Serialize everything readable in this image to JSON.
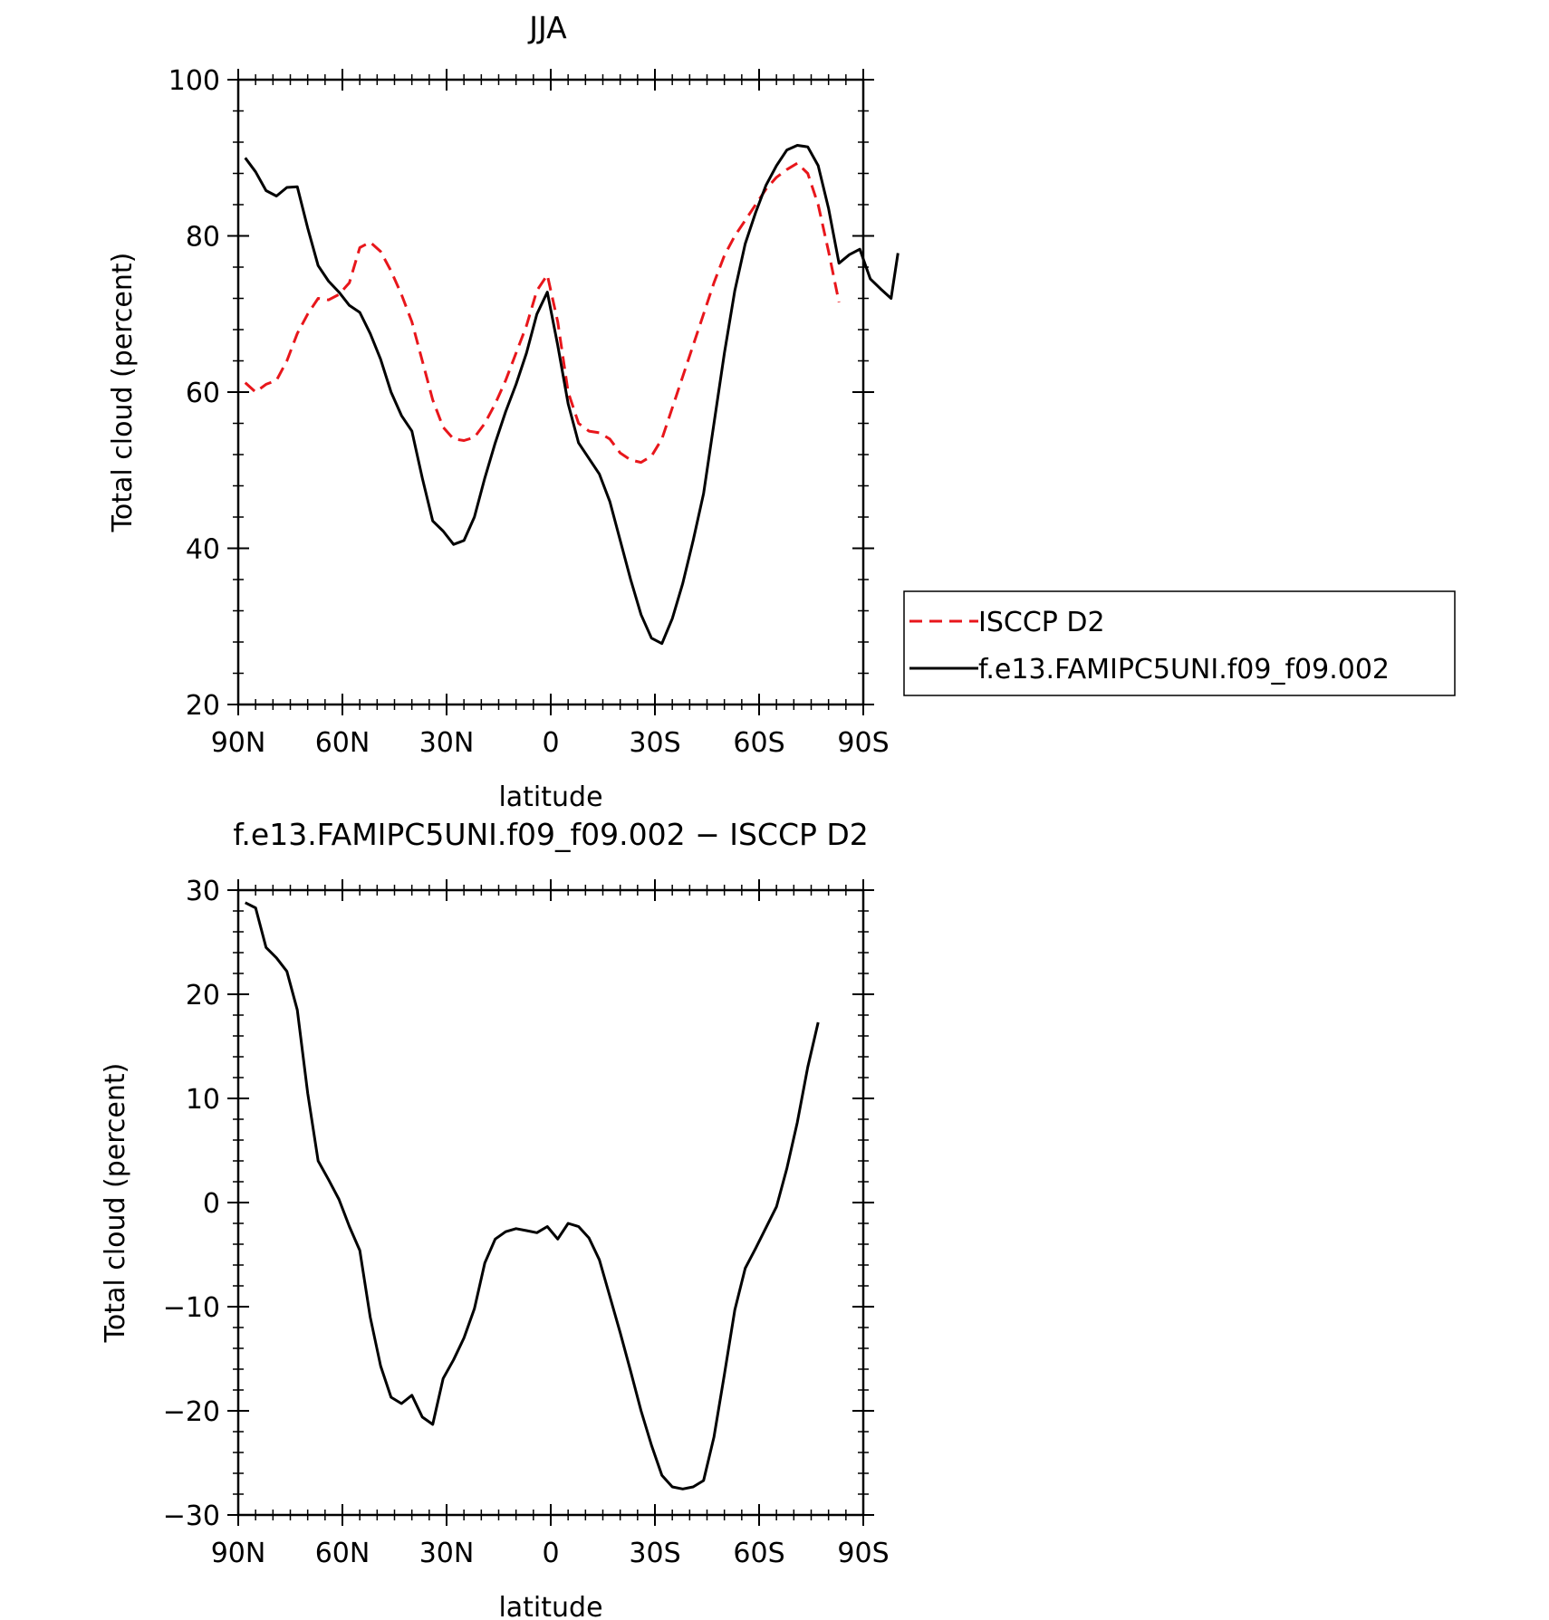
{
  "chart_data": [
    {
      "type": "line",
      "title": "JJA",
      "xlabel": "latitude",
      "ylabel": "Total cloud (percent)",
      "xlim": [
        90,
        -90
      ],
      "ylim": [
        20,
        100
      ],
      "x_ticks": [
        {
          "value": 90,
          "label": "90N"
        },
        {
          "value": 60,
          "label": "60N"
        },
        {
          "value": 30,
          "label": "30N"
        },
        {
          "value": 0,
          "label": "0"
        },
        {
          "value": -30,
          "label": "30S"
        },
        {
          "value": -60,
          "label": "60S"
        },
        {
          "value": -90,
          "label": "90S"
        }
      ],
      "y_ticks": [
        {
          "value": 20,
          "label": "20"
        },
        {
          "value": 40,
          "label": "40"
        },
        {
          "value": 60,
          "label": "60"
        },
        {
          "value": 80,
          "label": "80"
        },
        {
          "value": 100,
          "label": "100"
        }
      ],
      "legend": {
        "position": "right"
      },
      "series": [
        {
          "name": "ISCCP D2",
          "color": "#e8161b",
          "dash": true,
          "points": [
            [
              88,
              61.2
            ],
            [
              85,
              60
            ],
            [
              82,
              61
            ],
            [
              79,
              61.5
            ],
            [
              76,
              64
            ],
            [
              73,
              67.5
            ],
            [
              70,
              70
            ],
            [
              67,
              72
            ],
            [
              64,
              71.8
            ],
            [
              61,
              72.5
            ],
            [
              58,
              74
            ],
            [
              55,
              78.5
            ],
            [
              52,
              79.2
            ],
            [
              49,
              78
            ],
            [
              46,
              75.5
            ],
            [
              43,
              72.5
            ],
            [
              40,
              69
            ],
            [
              37,
              64
            ],
            [
              34,
              59
            ],
            [
              31,
              55.5
            ],
            [
              28,
              54
            ],
            [
              25,
              53.8
            ],
            [
              22,
              54.2
            ],
            [
              19,
              56
            ],
            [
              16,
              58.5
            ],
            [
              13,
              61.5
            ],
            [
              10,
              65
            ],
            [
              7,
              68.5
            ],
            [
              4,
              73
            ],
            [
              1,
              75
            ],
            [
              -2,
              69
            ],
            [
              -5,
              60
            ],
            [
              -8,
              56
            ],
            [
              -11,
              55
            ],
            [
              -14,
              54.8
            ],
            [
              -17,
              54
            ],
            [
              -20,
              52.2
            ],
            [
              -23,
              51.3
            ],
            [
              -26,
              51
            ],
            [
              -29,
              51.8
            ],
            [
              -32,
              54
            ],
            [
              -35,
              58
            ],
            [
              -38,
              62
            ],
            [
              -41,
              66
            ],
            [
              -44,
              70
            ],
            [
              -47,
              74
            ],
            [
              -50,
              77.5
            ],
            [
              -53,
              80
            ],
            [
              -56,
              82
            ],
            [
              -59,
              84
            ],
            [
              -62,
              86
            ],
            [
              -65,
              87.5
            ],
            [
              -68,
              88.5
            ],
            [
              -71,
              89.3
            ],
            [
              -74,
              88
            ],
            [
              -77,
              84
            ],
            [
              -80,
              78
            ],
            [
              -83,
              71.5
            ]
          ]
        },
        {
          "name": "f.e13.FAMIPC5UNI.f09_f09.002",
          "color": "#000000",
          "dash": false,
          "points": [
            [
              88,
              90
            ],
            [
              85,
              88.2
            ],
            [
              82,
              85.8
            ],
            [
              79,
              85.1
            ],
            [
              76,
              86.2
            ],
            [
              73,
              86.3
            ],
            [
              70,
              81
            ],
            [
              67,
              76.2
            ],
            [
              64,
              74.2
            ],
            [
              61,
              72.8
            ],
            [
              58,
              71.1
            ],
            [
              55,
              70.2
            ],
            [
              52,
              67.5
            ],
            [
              49,
              64.2
            ],
            [
              46,
              60
            ],
            [
              43,
              57
            ],
            [
              40,
              55
            ],
            [
              37,
              49
            ],
            [
              34,
              43.5
            ],
            [
              31,
              42.2
            ],
            [
              28,
              40.5
            ],
            [
              25,
              41
            ],
            [
              22,
              44
            ],
            [
              19,
              49
            ],
            [
              16,
              53.5
            ],
            [
              13,
              57.5
            ],
            [
              10,
              61
            ],
            [
              7,
              65
            ],
            [
              4,
              70
            ],
            [
              1,
              72.8
            ],
            [
              -2,
              66
            ],
            [
              -5,
              58.5
            ],
            [
              -8,
              53.5
            ],
            [
              -11,
              51.5
            ],
            [
              -14,
              49.5
            ],
            [
              -17,
              46
            ],
            [
              -20,
              41
            ],
            [
              -23,
              36
            ],
            [
              -26,
              31.5
            ],
            [
              -29,
              28.5
            ],
            [
              -32,
              27.8
            ],
            [
              -35,
              31
            ],
            [
              -38,
              35.5
            ],
            [
              -41,
              41
            ],
            [
              -44,
              47
            ],
            [
              -47,
              56
            ],
            [
              -50,
              65
            ],
            [
              -53,
              73
            ],
            [
              -56,
              79
            ],
            [
              -59,
              83
            ],
            [
              -62,
              86.5
            ],
            [
              -65,
              89
            ],
            [
              -68,
              91
            ],
            [
              -71,
              91.6
            ],
            [
              -74,
              91.4
            ],
            [
              -77,
              89
            ],
            [
              -80,
              83.5
            ],
            [
              -83,
              76.5
            ],
            [
              -86,
              77.6
            ],
            [
              -89,
              78.3
            ],
            [
              -92,
              74.5
            ],
            [
              -95,
              73.2
            ],
            [
              -98,
              72
            ],
            [
              -100,
              77.8
            ]
          ]
        }
      ]
    },
    {
      "type": "line",
      "title": "f.e13.FAMIPC5UNI.f09_f09.002 − ISCCP D2",
      "xlabel": "latitude",
      "ylabel": "Total cloud (percent)",
      "xlim": [
        90,
        -90
      ],
      "ylim": [
        -30,
        30
      ],
      "x_ticks": [
        {
          "value": 90,
          "label": "90N"
        },
        {
          "value": 60,
          "label": "60N"
        },
        {
          "value": 30,
          "label": "30N"
        },
        {
          "value": 0,
          "label": "0"
        },
        {
          "value": -30,
          "label": "30S"
        },
        {
          "value": -60,
          "label": "60S"
        },
        {
          "value": -90,
          "label": "90S"
        }
      ],
      "y_ticks": [
        {
          "value": -30,
          "label": "−30"
        },
        {
          "value": -20,
          "label": "−20"
        },
        {
          "value": -10,
          "label": "−10"
        },
        {
          "value": 0,
          "label": "0"
        },
        {
          "value": 10,
          "label": "10"
        },
        {
          "value": 20,
          "label": "20"
        },
        {
          "value": 30,
          "label": "30"
        }
      ],
      "series": [
        {
          "name": "",
          "color": "#000000",
          "dash": false,
          "points": [
            [
              88,
              28.8
            ],
            [
              85,
              28.3
            ],
            [
              82,
              24.5
            ],
            [
              79,
              23.5
            ],
            [
              76,
              22.2
            ],
            [
              73,
              18.5
            ],
            [
              70,
              10.5
            ],
            [
              67,
              4
            ],
            [
              64,
              2.2
            ],
            [
              61,
              0.3
            ],
            [
              58,
              -2.3
            ],
            [
              55,
              -4.6
            ],
            [
              52,
              -11
            ],
            [
              49,
              -15.7
            ],
            [
              46,
              -18.7
            ],
            [
              43,
              -19.3
            ],
            [
              40,
              -18.5
            ],
            [
              37,
              -20.6
            ],
            [
              34,
              -21.3
            ],
            [
              31,
              -16.9
            ],
            [
              28,
              -15.1
            ],
            [
              25,
              -13
            ],
            [
              22,
              -10.2
            ],
            [
              19,
              -5.8
            ],
            [
              16,
              -3.5
            ],
            [
              13,
              -2.8
            ],
            [
              10,
              -2.5
            ],
            [
              7,
              -2.7
            ],
            [
              4,
              -2.9
            ],
            [
              1,
              -2.3
            ],
            [
              -2,
              -3.5
            ],
            [
              -5,
              -2
            ],
            [
              -8,
              -2.3
            ],
            [
              -11,
              -3.4
            ],
            [
              -14,
              -5.5
            ],
            [
              -17,
              -9
            ],
            [
              -20,
              -12.5
            ],
            [
              -23,
              -16.2
            ],
            [
              -26,
              -20
            ],
            [
              -29,
              -23.3
            ],
            [
              -32,
              -26.2
            ],
            [
              -35,
              -27.3
            ],
            [
              -38,
              -27.5
            ],
            [
              -41,
              -27.3
            ],
            [
              -44,
              -26.7
            ],
            [
              -47,
              -22.5
            ],
            [
              -50,
              -16.5
            ],
            [
              -53,
              -10.3
            ],
            [
              -56,
              -6.3
            ],
            [
              -59,
              -4.4
            ],
            [
              -62,
              -2.4
            ],
            [
              -65,
              -0.4
            ],
            [
              -68,
              3.3
            ],
            [
              -71,
              7.7
            ],
            [
              -74,
              13
            ],
            [
              -77,
              17.3
            ]
          ]
        }
      ]
    }
  ]
}
